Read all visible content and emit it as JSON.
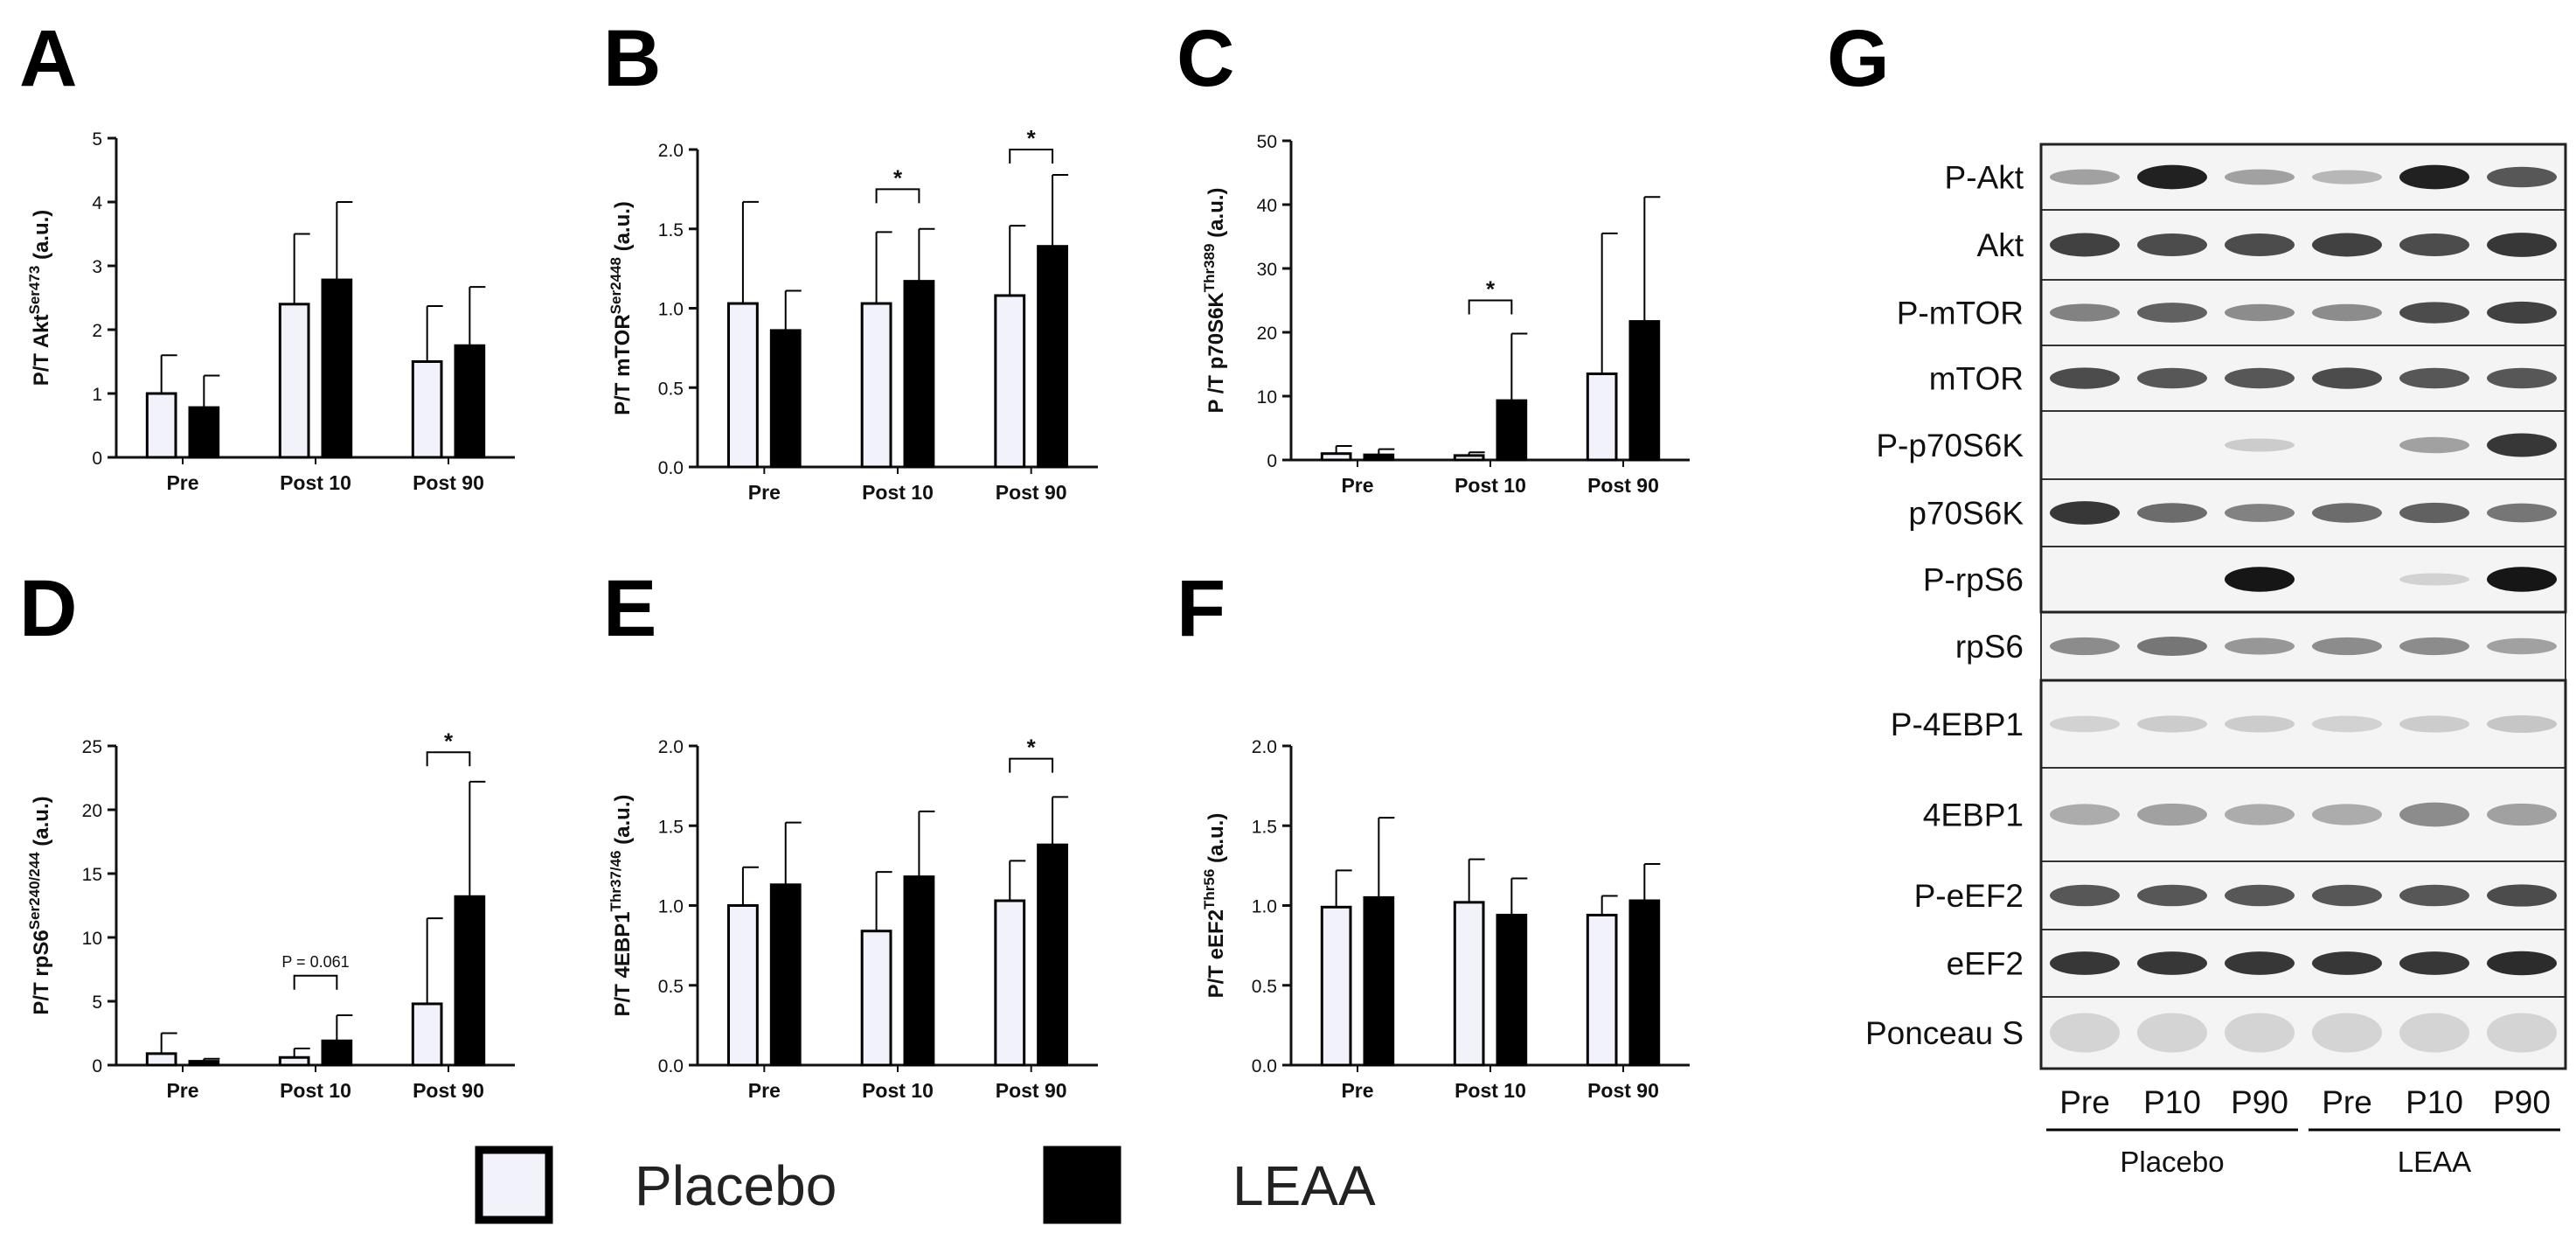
{
  "legend": {
    "items": [
      {
        "label": "Placebo",
        "fill": "#f2f2fb"
      },
      {
        "label": "LEAA",
        "fill": "#000000"
      }
    ]
  },
  "colors": {
    "placebo": "#f2f2fb",
    "leaa": "#000000",
    "axis": "#111111"
  },
  "chart_data": [
    {
      "panel": "A",
      "type": "bar",
      "title": "",
      "xlabel": "",
      "ylabel": {
        "base": "P/T Akt",
        "sup": "Ser473",
        "suffix": " (a.u.)"
      },
      "categories": [
        "Pre",
        "Post 10",
        "Post 90"
      ],
      "ylim": [
        0,
        5
      ],
      "yticks": [
        0,
        1,
        2,
        3,
        4,
        5
      ],
      "tick_labels": [
        "0",
        "1",
        "2",
        "3",
        "4",
        "5"
      ],
      "series": [
        {
          "name": "Placebo",
          "values": [
            1.0,
            2.4,
            1.5
          ],
          "errors": [
            0.6,
            1.1,
            0.87
          ]
        },
        {
          "name": "LEAA",
          "values": [
            0.78,
            2.78,
            1.75
          ],
          "errors": [
            0.5,
            1.22,
            0.92
          ]
        }
      ],
      "annotations": []
    },
    {
      "panel": "B",
      "type": "bar",
      "title": "",
      "xlabel": "",
      "ylabel": {
        "base": "P/T mTOR",
        "sup": "Ser2448",
        "suffix": " (a.u.)"
      },
      "categories": [
        "Pre",
        "Post 10",
        "Post 90"
      ],
      "ylim": [
        0,
        2.0
      ],
      "yticks": [
        0,
        0.5,
        1.0,
        1.5,
        2.0
      ],
      "tick_labels": [
        "0.0",
        "0.5",
        "1.0",
        "1.5",
        "2.0"
      ],
      "series": [
        {
          "name": "Placebo",
          "values": [
            1.03,
            1.03,
            1.08
          ],
          "errors": [
            0.64,
            0.45,
            0.44
          ]
        },
        {
          "name": "LEAA",
          "values": [
            0.86,
            1.17,
            1.39
          ],
          "errors": [
            0.25,
            0.33,
            0.45
          ]
        }
      ],
      "annotations": [
        {
          "category": 1,
          "text": "*",
          "y": 1.75
        },
        {
          "category": 2,
          "text": "*",
          "y": 2.0
        }
      ]
    },
    {
      "panel": "C",
      "type": "bar",
      "title": "",
      "xlabel": "",
      "ylabel": {
        "base": "P /T p70S6K",
        "sup": "Thr389",
        "suffix": " (a.u.)"
      },
      "categories": [
        "Pre",
        "Post 10",
        "Post 90"
      ],
      "ylim": [
        0,
        50
      ],
      "yticks": [
        0,
        10,
        20,
        30,
        40,
        50
      ],
      "tick_labels": [
        "0",
        "10",
        "20",
        "30",
        "40",
        "50"
      ],
      "series": [
        {
          "name": "Placebo",
          "values": [
            1.0,
            0.7,
            13.5
          ],
          "errors": [
            1.2,
            0.5,
            22.0
          ]
        },
        {
          "name": "LEAA",
          "values": [
            0.8,
            9.3,
            21.7
          ],
          "errors": [
            0.9,
            10.5,
            19.5
          ]
        }
      ],
      "annotations": [
        {
          "category": 1,
          "text": "*",
          "y": 25
        }
      ]
    },
    {
      "panel": "D",
      "type": "bar",
      "title": "",
      "xlabel": "",
      "ylabel": {
        "base": "P/T rpS6",
        "sup": "Ser240/244",
        "suffix": " (a.u.)"
      },
      "categories": [
        "Pre",
        "Post 10",
        "Post 90"
      ],
      "ylim": [
        0,
        25
      ],
      "yticks": [
        0,
        5,
        10,
        15,
        20,
        25
      ],
      "tick_labels": [
        "0",
        "5",
        "10",
        "15",
        "20",
        "25"
      ],
      "series": [
        {
          "name": "Placebo",
          "values": [
            0.9,
            0.6,
            4.8
          ],
          "errors": [
            1.6,
            0.7,
            6.7
          ]
        },
        {
          "name": "LEAA",
          "values": [
            0.3,
            1.9,
            13.2
          ],
          "errors": [
            0.2,
            2.0,
            9.0
          ]
        }
      ],
      "annotations": [
        {
          "category": 1,
          "text": "P = 0.061",
          "y": 7.0
        },
        {
          "category": 2,
          "text": "*",
          "y": 24.5
        }
      ]
    },
    {
      "panel": "E",
      "type": "bar",
      "title": "",
      "xlabel": "",
      "ylabel": {
        "base": "P/T 4EBP1",
        "sup": "Thr37/46",
        "suffix": " (a.u.)"
      },
      "categories": [
        "Pre",
        "Post 10",
        "Post 90"
      ],
      "ylim": [
        0,
        2.0
      ],
      "yticks": [
        0,
        0.5,
        1.0,
        1.5,
        2.0
      ],
      "tick_labels": [
        "0.0",
        "0.5",
        "1.0",
        "1.5",
        "2.0"
      ],
      "series": [
        {
          "name": "Placebo",
          "values": [
            1.0,
            0.84,
            1.03
          ],
          "errors": [
            0.24,
            0.37,
            0.25
          ]
        },
        {
          "name": "LEAA",
          "values": [
            1.13,
            1.18,
            1.38
          ],
          "errors": [
            0.39,
            0.41,
            0.3
          ]
        }
      ],
      "annotations": [
        {
          "category": 2,
          "text": "*",
          "y": 1.92
        }
      ]
    },
    {
      "panel": "F",
      "type": "bar",
      "title": "",
      "xlabel": "",
      "ylabel": {
        "base": "P/T eEF2",
        "sup": "Thr56",
        "suffix": " (a.u.)"
      },
      "categories": [
        "Pre",
        "Post 10",
        "Post 90"
      ],
      "ylim": [
        0,
        2.0
      ],
      "yticks": [
        0,
        0.5,
        1.0,
        1.5,
        2.0
      ],
      "tick_labels": [
        "0.0",
        "0.5",
        "1.0",
        "1.5",
        "2.0"
      ],
      "series": [
        {
          "name": "Placebo",
          "values": [
            0.99,
            1.02,
            0.94
          ],
          "errors": [
            0.23,
            0.27,
            0.12
          ]
        },
        {
          "name": "LEAA",
          "values": [
            1.05,
            0.94,
            1.03
          ],
          "errors": [
            0.5,
            0.23,
            0.23
          ]
        }
      ],
      "annotations": []
    }
  ],
  "blot": {
    "panel": "G",
    "rows": [
      {
        "label": "P-Akt",
        "intensities": [
          0.35,
          0.95,
          0.35,
          0.25,
          0.95,
          0.7
        ]
      },
      {
        "label": "Akt",
        "intensities": [
          0.8,
          0.75,
          0.75,
          0.8,
          0.75,
          0.85
        ]
      },
      {
        "label": "P-mTOR",
        "intensities": [
          0.5,
          0.65,
          0.45,
          0.45,
          0.75,
          0.8
        ]
      },
      {
        "label": "mTOR",
        "intensities": [
          0.75,
          0.7,
          0.7,
          0.75,
          0.7,
          0.7
        ]
      },
      {
        "label": "P-p70S6K",
        "intensities": [
          0.0,
          0.0,
          0.15,
          0.0,
          0.35,
          0.85
        ]
      },
      {
        "label": "p70S6K",
        "intensities": [
          0.85,
          0.6,
          0.5,
          0.6,
          0.65,
          0.55
        ]
      },
      {
        "label": "P-rpS6",
        "intensities": [
          0.0,
          0.0,
          1.0,
          0.0,
          0.12,
          1.0
        ]
      },
      {
        "label": "rpS6",
        "intensities": [
          0.45,
          0.55,
          0.4,
          0.45,
          0.45,
          0.35
        ]
      },
      {
        "label": "P-4EBP1",
        "intensities": [
          0.12,
          0.15,
          0.15,
          0.12,
          0.15,
          0.18
        ]
      },
      {
        "label": "4EBP1",
        "intensities": [
          0.3,
          0.35,
          0.3,
          0.3,
          0.45,
          0.35
        ]
      },
      {
        "label": "P-eEF2",
        "intensities": [
          0.7,
          0.7,
          0.7,
          0.7,
          0.7,
          0.75
        ]
      },
      {
        "label": "eEF2",
        "intensities": [
          0.85,
          0.85,
          0.85,
          0.85,
          0.85,
          0.9
        ]
      },
      {
        "label": "Ponceau S",
        "intensities": [
          0.25,
          0.25,
          0.25,
          0.25,
          0.25,
          0.25
        ]
      }
    ],
    "lanes": [
      "Pre",
      "P10",
      "P90",
      "Pre",
      "P10",
      "P90"
    ],
    "groups": [
      {
        "label": "Placebo",
        "lanes": [
          0,
          1,
          2
        ]
      },
      {
        "label": "LEAA",
        "lanes": [
          3,
          4,
          5
        ]
      }
    ]
  }
}
